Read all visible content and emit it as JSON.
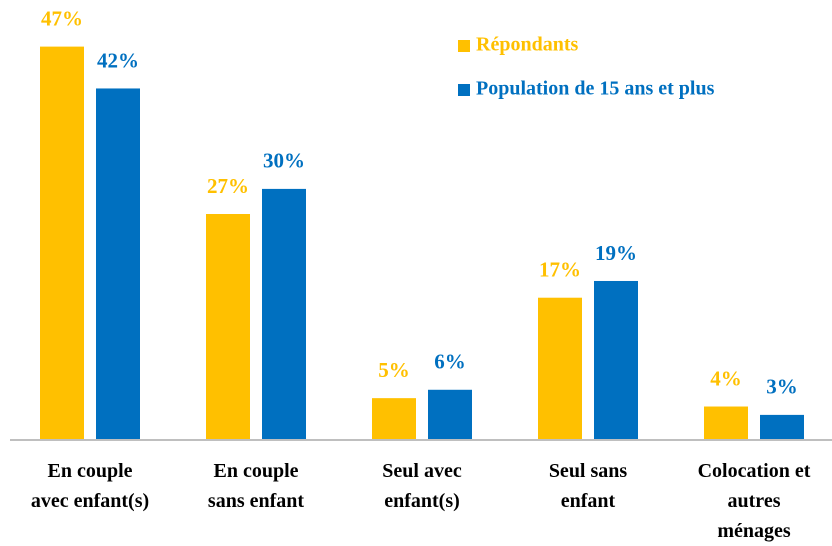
{
  "chart_data": {
    "type": "bar",
    "categories": [
      [
        "En couple",
        "avec enfant(s)"
      ],
      [
        "En couple",
        "sans enfant"
      ],
      [
        "Seul avec",
        "enfant(s)"
      ],
      [
        "Seul sans",
        "enfant"
      ],
      [
        "Colocation et",
        "autres",
        "ménages"
      ]
    ],
    "series": [
      {
        "name": "Répondants",
        "color": "#FFC000",
        "values": [
          47,
          27,
          5,
          17,
          4
        ],
        "value_labels": [
          "47%",
          "27%",
          "5%",
          "17%",
          "4%"
        ]
      },
      {
        "name": "Population de 15 ans et plus",
        "color": "#0070C0",
        "values": [
          42,
          30,
          6,
          19,
          3
        ],
        "value_labels": [
          "42%",
          "30%",
          "6%",
          "19%",
          "3%"
        ]
      }
    ],
    "legend": "upper right"
  }
}
